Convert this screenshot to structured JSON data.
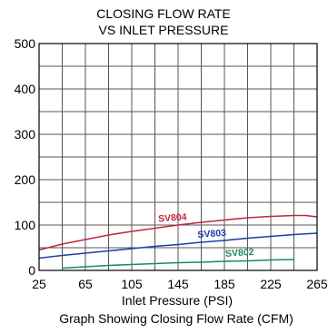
{
  "chart_data": {
    "type": "line",
    "title_line1": "CLOSING FLOW RATE",
    "title_line2": "VS INLET PRESSURE",
    "xlabel": "Inlet Pressure (PSI)",
    "caption": "Graph Showing Closing Flow Rate (CFM)",
    "ylabel": "",
    "xlim": [
      25,
      265
    ],
    "ylim": [
      0,
      500
    ],
    "x_ticks": [
      25,
      65,
      105,
      145,
      185,
      225,
      265
    ],
    "x_tick_labels": [
      "25",
      "65",
      "105",
      "145",
      "185",
      "225",
      "265"
    ],
    "y_ticks": [
      0,
      100,
      200,
      300,
      400,
      500
    ],
    "y_tick_labels": [
      "0",
      "100",
      "200",
      "300",
      "400",
      "500"
    ],
    "x_minor_step": 20,
    "y_minor_step": 50,
    "grid": true,
    "legend": "none",
    "series": [
      {
        "name": "SV804",
        "color": "#c0283e",
        "points": [
          [
            25,
            45
          ],
          [
            45,
            58
          ],
          [
            65,
            68
          ],
          [
            85,
            78
          ],
          [
            105,
            86
          ],
          [
            125,
            93
          ],
          [
            145,
            100
          ],
          [
            165,
            106
          ],
          [
            185,
            111
          ],
          [
            205,
            116
          ],
          [
            225,
            119
          ],
          [
            245,
            121
          ],
          [
            255,
            121
          ],
          [
            265,
            118
          ]
        ],
        "label_at": [
          128,
          107
        ]
      },
      {
        "name": "SV803",
        "color": "#1f3fa6",
        "points": [
          [
            25,
            27
          ],
          [
            45,
            33
          ],
          [
            65,
            38
          ],
          [
            85,
            43
          ],
          [
            105,
            48
          ],
          [
            125,
            53
          ],
          [
            145,
            57
          ],
          [
            165,
            62
          ],
          [
            185,
            66
          ],
          [
            205,
            71
          ],
          [
            225,
            75
          ],
          [
            245,
            79
          ],
          [
            265,
            82
          ]
        ],
        "label_at": [
          162,
          72
        ]
      },
      {
        "name": "SV802",
        "color": "#1e8a5a",
        "points": [
          [
            45,
            5
          ],
          [
            65,
            8
          ],
          [
            85,
            11
          ],
          [
            105,
            13
          ],
          [
            125,
            15
          ],
          [
            145,
            17
          ],
          [
            165,
            18
          ],
          [
            185,
            20
          ],
          [
            205,
            21
          ],
          [
            225,
            23
          ],
          [
            245,
            24
          ]
        ],
        "label_at": [
          186,
          30
        ]
      }
    ]
  }
}
